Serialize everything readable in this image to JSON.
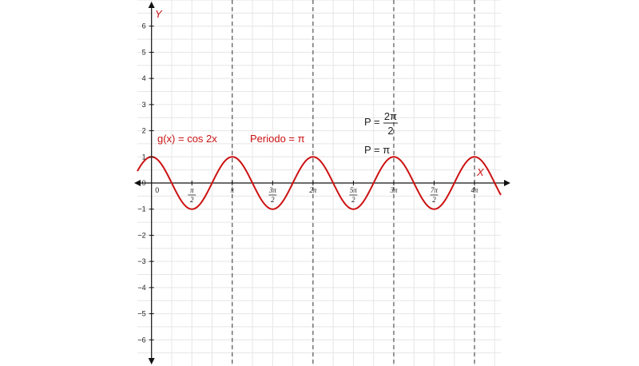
{
  "chart_data": {
    "type": "line",
    "title": "",
    "xlabel": "X",
    "ylabel": "Y",
    "xlim": [
      -0.55,
      13.59
    ],
    "ylim": [
      -7,
      7
    ],
    "grid": true,
    "y_ticks": [
      {
        "value": 6,
        "label": "6"
      },
      {
        "value": 5,
        "label": "5"
      },
      {
        "value": 4,
        "label": "4"
      },
      {
        "value": 3,
        "label": "3"
      },
      {
        "value": 2,
        "label": "2"
      },
      {
        "value": 1,
        "label": "1"
      },
      {
        "value": 0,
        "label": "0"
      },
      {
        "value": -1,
        "label": "−1"
      },
      {
        "value": -2,
        "label": "−2"
      },
      {
        "value": -3,
        "label": "−3"
      },
      {
        "value": -4,
        "label": "−4"
      },
      {
        "value": -5,
        "label": "−5"
      },
      {
        "value": -6,
        "label": "−6"
      }
    ],
    "x_ticks": [
      {
        "value": 0,
        "label": "0"
      },
      {
        "value": 1.5708,
        "num": "π",
        "den": "2"
      },
      {
        "value": 3.1416,
        "label": "π"
      },
      {
        "value": 4.7124,
        "num": "3π",
        "den": "2"
      },
      {
        "value": 6.2832,
        "label": "2π"
      },
      {
        "value": 7.854,
        "num": "5π",
        "den": "2"
      },
      {
        "value": 9.4248,
        "label": "3π"
      },
      {
        "value": 10.9956,
        "num": "7π",
        "den": "2"
      },
      {
        "value": 12.5664,
        "label": "4π"
      }
    ],
    "dashed_verticals_x": [
      3.1416,
      6.2832,
      9.4248,
      12.5664
    ],
    "series": [
      {
        "name": "g(x) = cos 2x",
        "function": "cos(2x)",
        "color": "#cc1111"
      }
    ],
    "annotations": {
      "function_label": "g(x) = cos 2x",
      "period_label": "Periodo = π",
      "p_prefix": "P =",
      "p_num": "2π",
      "p_den": "2",
      "p_result": "P = π"
    }
  }
}
